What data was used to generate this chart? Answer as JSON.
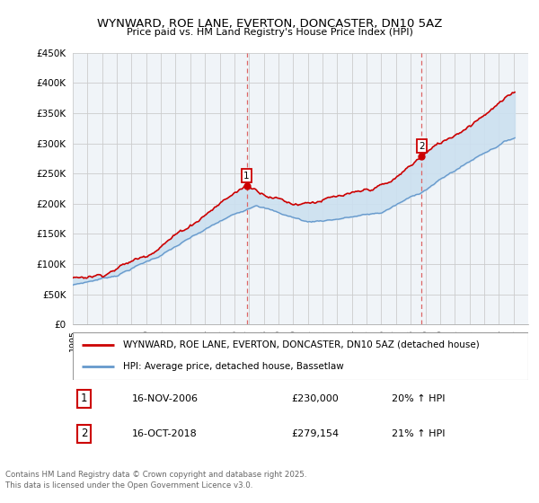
{
  "title": "WYNWARD, ROE LANE, EVERTON, DONCASTER, DN10 5AZ",
  "subtitle": "Price paid vs. HM Land Registry's House Price Index (HPI)",
  "ylim": [
    0,
    450000
  ],
  "yticks": [
    0,
    50000,
    100000,
    150000,
    200000,
    250000,
    300000,
    350000,
    400000,
    450000
  ],
  "ytick_labels": [
    "£0",
    "£50K",
    "£100K",
    "£150K",
    "£200K",
    "£250K",
    "£300K",
    "£350K",
    "£400K",
    "£450K"
  ],
  "legend_entry1": "WYNWARD, ROE LANE, EVERTON, DONCASTER, DN10 5AZ (detached house)",
  "legend_entry2": "HPI: Average price, detached house, Bassetlaw",
  "marker1_label": "1",
  "marker1_date": "16-NOV-2006",
  "marker1_price": "£230,000",
  "marker1_hpi": "20% ↑ HPI",
  "marker2_label": "2",
  "marker2_date": "16-OCT-2018",
  "marker2_price": "£279,154",
  "marker2_hpi": "21% ↑ HPI",
  "footer": "Contains HM Land Registry data © Crown copyright and database right 2025.\nThis data is licensed under the Open Government Licence v3.0.",
  "line1_color": "#cc0000",
  "line2_color": "#6699cc",
  "fill_color": "#cce0f0",
  "vline_color": "#dd6666",
  "bg_color": "#ffffff",
  "grid_color": "#cccccc",
  "chart_bg": "#f0f4f8"
}
